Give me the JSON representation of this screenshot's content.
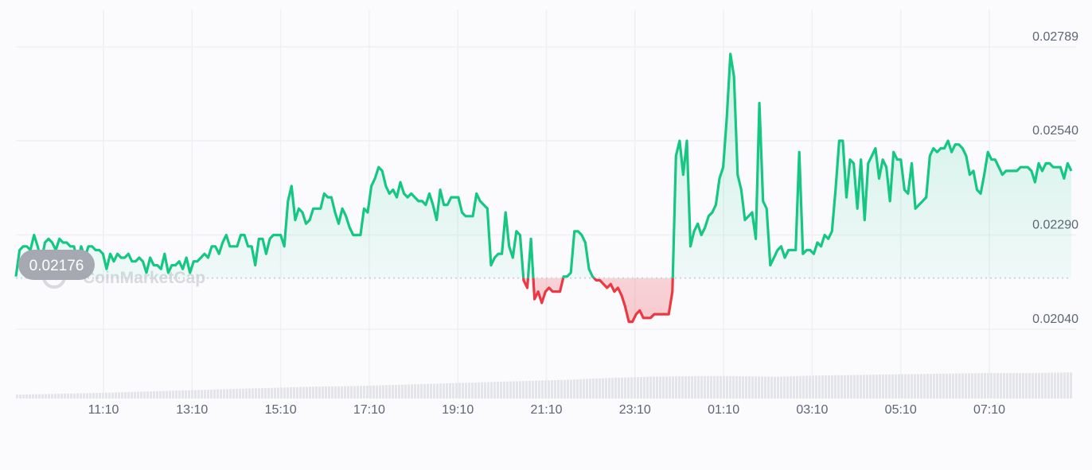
{
  "colors": {
    "up": "#16c784",
    "down": "#ea3943",
    "grid": "#eef0f3",
    "baseline": "#cfd3da",
    "badge": "#a6a9b2",
    "volume": "#e4e5ea",
    "tick_text": "#5d6575"
  },
  "watermark": {
    "text": "CoinMarketCap",
    "icon": "coinmarketcap-logo-icon"
  },
  "chart_data": {
    "type": "line",
    "title": "",
    "xlabel": "",
    "ylabel": "",
    "ylim": [
      0.0196,
      0.0285
    ],
    "baseline": {
      "value": 0.02176,
      "label": "0.02176"
    },
    "y_ticks": [
      {
        "value": 0.02789,
        "label": "0.02789"
      },
      {
        "value": 0.0254,
        "label": "0.02540"
      },
      {
        "value": 0.0229,
        "label": "0.02290"
      },
      {
        "value": 0.0204,
        "label": "0.02040"
      }
    ],
    "x_ticks": [
      "11:10",
      "13:10",
      "15:10",
      "17:10",
      "19:10",
      "21:10",
      "23:10",
      "01:10",
      "03:10",
      "05:10",
      "07:10"
    ],
    "grid": true,
    "series": [
      {
        "type": "line",
        "values": [
          0.0218,
          0.0225,
          0.0226,
          0.0226,
          0.0225,
          0.0229,
          0.0226,
          0.0222,
          0.0227,
          0.0228,
          0.0227,
          0.0225,
          0.0228,
          0.0227,
          0.0227,
          0.0226,
          0.0226,
          0.0222,
          0.0226,
          0.0223,
          0.0226,
          0.0226,
          0.0225,
          0.0225,
          0.0224,
          0.022,
          0.0224,
          0.0222,
          0.0224,
          0.0223,
          0.0223,
          0.0224,
          0.0222,
          0.0222,
          0.0223,
          0.0222,
          0.0219,
          0.0223,
          0.0221,
          0.0221,
          0.022,
          0.0224,
          0.0219,
          0.0221,
          0.0221,
          0.0222,
          0.022,
          0.0223,
          0.0219,
          0.0222,
          0.0222,
          0.0223,
          0.0224,
          0.0223,
          0.0226,
          0.0226,
          0.0224,
          0.0227,
          0.0229,
          0.0226,
          0.0226,
          0.0226,
          0.0229,
          0.0229,
          0.0226,
          0.0226,
          0.0221,
          0.0228,
          0.0228,
          0.0224,
          0.0228,
          0.0229,
          0.0229,
          0.0229,
          0.0226,
          0.0238,
          0.0242,
          0.0233,
          0.0236,
          0.0235,
          0.0232,
          0.0233,
          0.0236,
          0.0236,
          0.0236,
          0.024,
          0.0239,
          0.0239,
          0.0235,
          0.0232,
          0.0236,
          0.0234,
          0.0231,
          0.0229,
          0.0229,
          0.0229,
          0.0236,
          0.0235,
          0.0242,
          0.0244,
          0.0247,
          0.0246,
          0.0242,
          0.024,
          0.0241,
          0.0239,
          0.0243,
          0.024,
          0.0239,
          0.024,
          0.0239,
          0.0238,
          0.0238,
          0.0237,
          0.024,
          0.0237,
          0.0233,
          0.0241,
          0.0237,
          0.0237,
          0.0239,
          0.0239,
          0.0239,
          0.0235,
          0.0234,
          0.0234,
          0.0234,
          0.024,
          0.0238,
          0.0237,
          0.0236,
          0.0221,
          0.0223,
          0.0224,
          0.0224,
          0.0235,
          0.0226,
          0.0223,
          0.023,
          0.0229,
          0.0217,
          0.0215,
          0.0228,
          0.0212,
          0.0214,
          0.0211,
          0.0214,
          0.0215,
          0.0214,
          0.0214,
          0.0214,
          0.0218,
          0.0218,
          0.0219,
          0.023,
          0.023,
          0.0229,
          0.0227,
          0.022,
          0.0218,
          0.0217,
          0.0217,
          0.0216,
          0.0215,
          0.0216,
          0.0214,
          0.0215,
          0.0213,
          0.021,
          0.0206,
          0.0206,
          0.0208,
          0.0209,
          0.0207,
          0.0207,
          0.0207,
          0.0208,
          0.0208,
          0.0208,
          0.0208,
          0.0208,
          0.0214,
          0.025,
          0.0254,
          0.0245,
          0.0254,
          0.0226,
          0.023,
          0.0232,
          0.0229,
          0.0231,
          0.0234,
          0.0235,
          0.0237,
          0.0244,
          0.0247,
          0.026,
          0.0277,
          0.0271,
          0.0245,
          0.0241,
          0.0233,
          0.0234,
          0.0235,
          0.0228,
          0.0264,
          0.0238,
          0.0236,
          0.0221,
          0.0223,
          0.0225,
          0.0226,
          0.0223,
          0.0225,
          0.0225,
          0.0225,
          0.0251,
          0.0224,
          0.0225,
          0.0225,
          0.0224,
          0.0227,
          0.0226,
          0.0229,
          0.0228,
          0.023,
          0.0241,
          0.0254,
          0.0254,
          0.0239,
          0.0249,
          0.0248,
          0.0236,
          0.0249,
          0.0233,
          0.0248,
          0.025,
          0.0252,
          0.0244,
          0.0249,
          0.0247,
          0.0238,
          0.0251,
          0.0249,
          0.0249,
          0.0241,
          0.024,
          0.0248,
          0.0236,
          0.0237,
          0.0238,
          0.0239,
          0.025,
          0.0252,
          0.0251,
          0.0252,
          0.0252,
          0.0254,
          0.0251,
          0.0253,
          0.0253,
          0.0252,
          0.025,
          0.0245,
          0.0246,
          0.0241,
          0.024,
          0.0245,
          0.0251,
          0.0249,
          0.0249,
          0.0247,
          0.0245,
          0.0246,
          0.0246,
          0.0246,
          0.0246,
          0.0247,
          0.0247,
          0.0247,
          0.0246,
          0.0243,
          0.0248,
          0.0246,
          0.0248,
          0.0248,
          0.0247,
          0.0247,
          0.0247,
          0.0244,
          0.0248,
          0.0246
        ],
        "up_color": "#16c784",
        "down_color": "#ea3943"
      },
      {
        "type": "bar",
        "name": "",
        "values": [
          0.12,
          0.15,
          0.18,
          0.22,
          0.26,
          0.3,
          0.34,
          0.38,
          0.4,
          0.44,
          0.48,
          0.52,
          0.56,
          0.6,
          0.66,
          0.7,
          0.72,
          0.72,
          0.7,
          0.74,
          0.76,
          0.78,
          0.8,
          0.82,
          0.82,
          0.84
        ],
        "scale_max": 1.0,
        "color": "#e4e5ea"
      }
    ]
  }
}
